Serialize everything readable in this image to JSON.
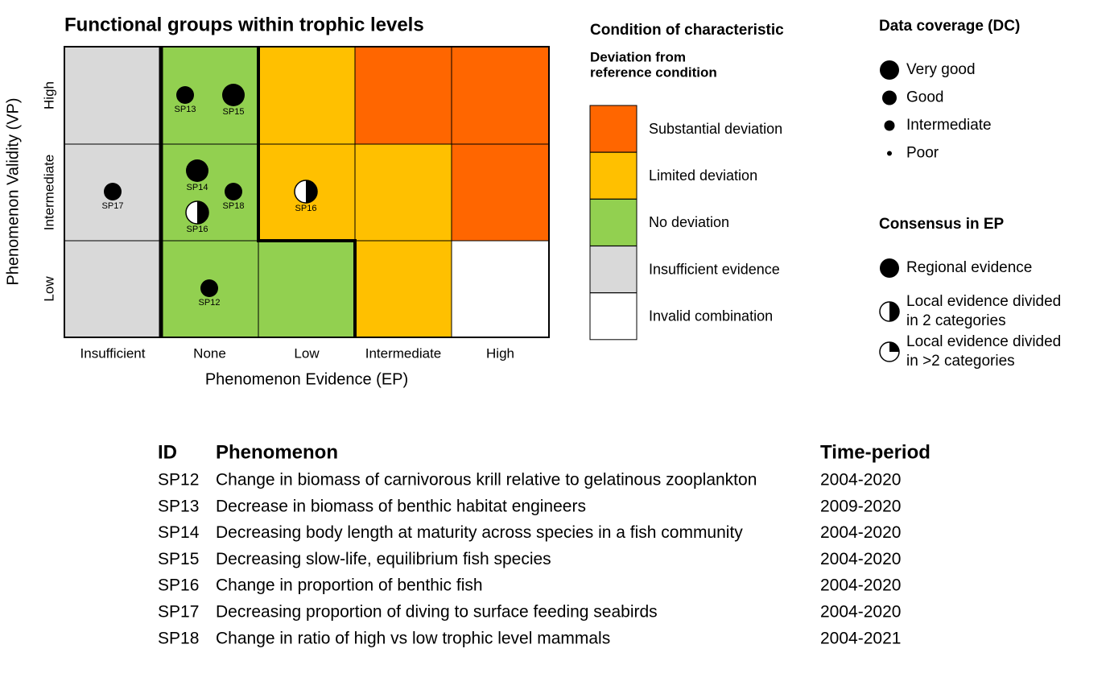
{
  "matrix": {
    "title": "Functional groups within trophic levels",
    "x_label": "Phenomenon Evidence (EP)",
    "y_label": "Phenomenon Validity (VP)",
    "columns": [
      "Insufficient",
      "None",
      "Low",
      "Intermediate",
      "High"
    ],
    "rows": [
      "High",
      "Intermediate",
      "Low"
    ],
    "points": [
      {
        "label": "SP13"
      },
      {
        "label": "SP15"
      },
      {
        "label": "SP14"
      },
      {
        "label": "SP18"
      },
      {
        "label": "SP16"
      },
      {
        "label": "SP17"
      },
      {
        "label": "SP12"
      },
      {
        "label": "SP16"
      }
    ]
  },
  "condition_legend": {
    "title": "Condition of characteristic",
    "subtitle": [
      "Deviation from",
      "reference condition"
    ],
    "items": [
      {
        "label": "Substantial deviation",
        "color": "#ff6600"
      },
      {
        "label": "Limited deviation",
        "color": "#ffc000"
      },
      {
        "label": "No deviation",
        "color": "#92d050"
      },
      {
        "label": "Insufficient evidence",
        "color": "#d9d9d9"
      },
      {
        "label": "Invalid combination",
        "color": "#ffffff"
      }
    ]
  },
  "coverage_legend": {
    "title": "Data coverage (DC)",
    "items": [
      "Very good",
      "Good",
      "Intermediate",
      "Poor"
    ]
  },
  "consensus_legend": {
    "title": "Consensus in EP",
    "items": [
      [
        "Regional evidence"
      ],
      [
        "Local evidence divided",
        "in 2 categories"
      ],
      [
        "Local evidence divided",
        "in >2 categories"
      ]
    ]
  },
  "table": {
    "header": [
      "ID",
      "Phenomenon",
      "Time-period"
    ],
    "rows": [
      [
        "SP12",
        "Change in biomass of carnivorous krill relative to gelatinous zooplankton",
        "2004-2020"
      ],
      [
        "SP13",
        "Decrease in biomass of benthic habitat engineers",
        "2009-2020"
      ],
      [
        "SP14",
        "Decreasing body length at maturity across species in a fish community",
        "2004-2020"
      ],
      [
        "SP15",
        "Decreasing slow-life, equilibrium fish species",
        "2004-2020"
      ],
      [
        "SP16",
        "Change in proportion of benthic fish",
        "2004-2020"
      ],
      [
        "SP17",
        "Decreasing proportion of diving to surface feeding seabirds",
        "2004-2020"
      ],
      [
        "SP18",
        "Change in ratio of high vs low trophic level mammals",
        "2004-2021"
      ]
    ]
  }
}
